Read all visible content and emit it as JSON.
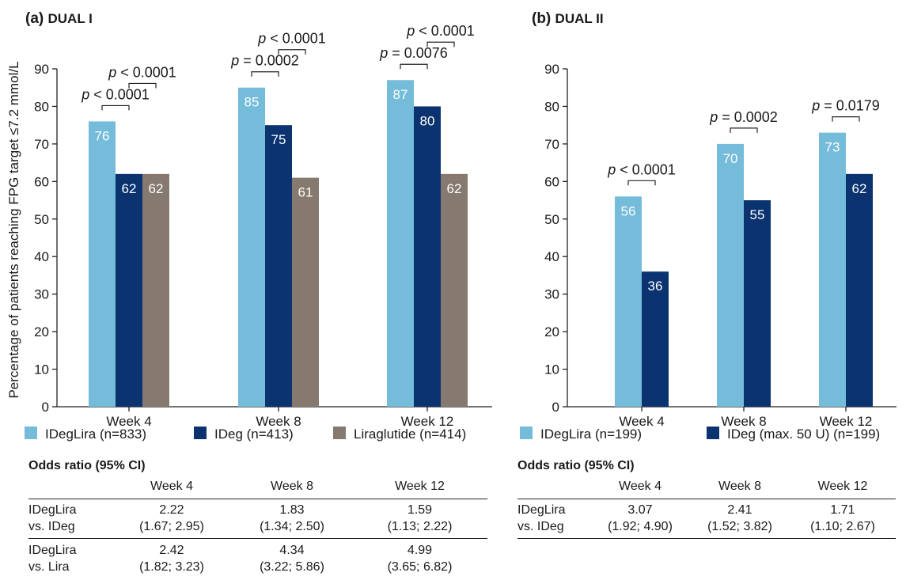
{
  "chart_data": [
    {
      "type": "bar",
      "panel_label": "(a)",
      "title": "DUAL I",
      "ylabel": "Percentage of patients reaching FPG target ≤7.2 mmol/L",
      "ylim": [
        0,
        90
      ],
      "yticks": [
        0,
        10,
        20,
        30,
        40,
        50,
        60,
        70,
        80,
        90
      ],
      "categories": [
        "Week 4",
        "Week 8",
        "Week 12"
      ],
      "series": [
        {
          "name": "IDegLira (n=833)",
          "color": "#74bcd9",
          "values": [
            76,
            85,
            87
          ],
          "labels": [
            "76",
            "85",
            "87"
          ]
        },
        {
          "name": "IDeg (n=413)",
          "color": "#0b3370",
          "values": [
            62,
            75,
            80
          ],
          "labels": [
            "62",
            "75",
            "80"
          ]
        },
        {
          "name": "Liraglutide (n=414)",
          "color": "#867a70",
          "values": [
            62,
            61,
            62
          ],
          "labels": [
            "62",
            "61",
            "62"
          ]
        }
      ],
      "annotations": [
        {
          "category": 0,
          "from": 0,
          "to": 1,
          "level": 0,
          "text": "p < 0.0001"
        },
        {
          "category": 0,
          "from": 1,
          "to": 2,
          "level": 1,
          "text": "p < 0.0001"
        },
        {
          "category": 1,
          "from": 0,
          "to": 1,
          "level": 0,
          "text": "p = 0.0002"
        },
        {
          "category": 1,
          "from": 1,
          "to": 2,
          "level": 1,
          "text": "p < 0.0001"
        },
        {
          "category": 2,
          "from": 0,
          "to": 1,
          "level": 0,
          "text": "p = 0.0076"
        },
        {
          "category": 2,
          "from": 1,
          "to": 2,
          "level": 1,
          "text": "p < 0.0001"
        }
      ]
    },
    {
      "type": "bar",
      "panel_label": "(b)",
      "title": "DUAL II",
      "ylabel": "",
      "ylim": [
        0,
        90
      ],
      "yticks": [
        0,
        10,
        20,
        30,
        40,
        50,
        60,
        70,
        80,
        90
      ],
      "categories": [
        "Week 4",
        "Week 8",
        "Week 12"
      ],
      "series": [
        {
          "name": "IDegLira (n=199)",
          "color": "#74bcd9",
          "values": [
            56,
            70,
            73
          ],
          "labels": [
            "56",
            "70",
            "73"
          ]
        },
        {
          "name": "IDeg (max. 50 U) (n=199)",
          "color": "#0b3370",
          "values": [
            36,
            55,
            62
          ],
          "labels": [
            "36",
            "55",
            "62"
          ]
        }
      ],
      "annotations": [
        {
          "category": 0,
          "from": 0,
          "to": 1,
          "level": 0,
          "text": "p < 0.0001"
        },
        {
          "category": 1,
          "from": 0,
          "to": 1,
          "level": 0,
          "text": "p = 0.0002"
        },
        {
          "category": 2,
          "from": 0,
          "to": 1,
          "level": 0,
          "text": "p = 0.0179"
        }
      ]
    }
  ],
  "odds_tables": [
    {
      "title": "Odds ratio (95% CI)",
      "columns": [
        "Week 4",
        "Week 8",
        "Week 12"
      ],
      "rows": [
        {
          "label": [
            "IDegLira",
            "vs. IDeg"
          ],
          "values": [
            [
              "2.22",
              "(1.67; 2.95)"
            ],
            [
              "1.83",
              "(1.34; 2.50)"
            ],
            [
              "1.59",
              "(1.13; 2.22)"
            ]
          ]
        },
        {
          "label": [
            "IDegLira",
            "vs. Lira"
          ],
          "values": [
            [
              "2.42",
              "(1.82; 3.23)"
            ],
            [
              "4.34",
              "(3.22; 5.86)"
            ],
            [
              "4.99",
              "(3.65; 6.82)"
            ]
          ]
        }
      ]
    },
    {
      "title": "Odds ratio (95% CI)",
      "columns": [
        "Week 4",
        "Week 8",
        "Week 12"
      ],
      "rows": [
        {
          "label": [
            "IDegLira",
            "vs. IDeg"
          ],
          "values": [
            [
              "3.07",
              "(1.92; 4.90)"
            ],
            [
              "2.41",
              "(1.52; 3.82)"
            ],
            [
              "1.71",
              "(1.10; 2.67)"
            ]
          ]
        }
      ]
    }
  ]
}
